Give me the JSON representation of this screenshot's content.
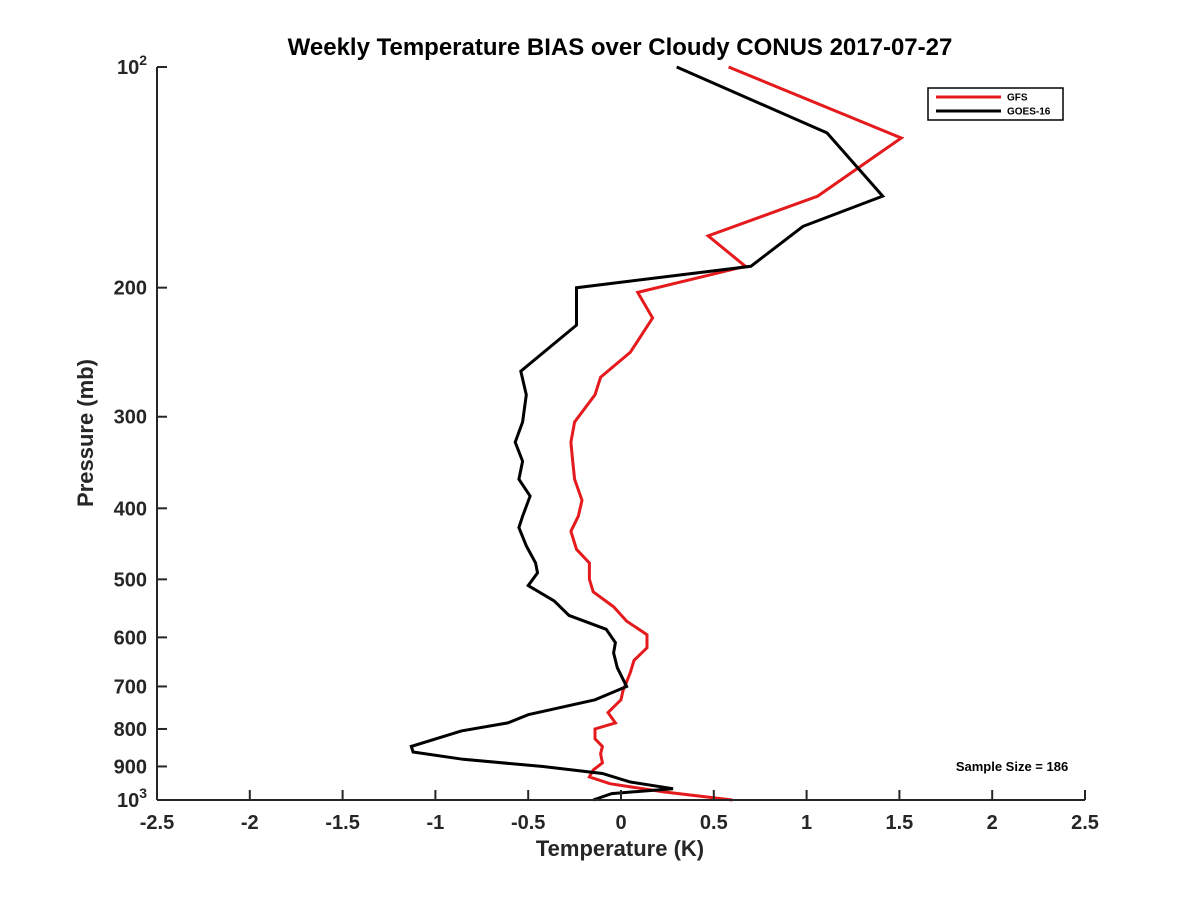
{
  "chart_data": {
    "type": "line",
    "title": "Weekly Temperature BIAS over Cloudy CONUS 2017-07-27",
    "xlabel": "Temperature (K)",
    "ylabel": "Pressure (mb)",
    "xlim": [
      -2.5,
      2.5
    ],
    "ylim": [
      100,
      1000
    ],
    "y_scale": "log",
    "y_reversed": true,
    "grid": false,
    "legend_position": "top-right",
    "xticks": [
      -2.5,
      -2,
      -1.5,
      -1,
      -0.5,
      0,
      0.5,
      1,
      1.5,
      2,
      2.5
    ],
    "xtick_labels": [
      "-2.5",
      "-2",
      "-1.5",
      "-1",
      "-0.5",
      "0",
      "0.5",
      "1",
      "1.5",
      "2",
      "2.5"
    ],
    "yticks": [
      100,
      200,
      300,
      400,
      500,
      600,
      700,
      800,
      900,
      1000
    ],
    "ytick_labels": [
      {
        "base": "10",
        "exp": "2"
      },
      {
        "base": "200",
        "exp": ""
      },
      {
        "base": "300",
        "exp": ""
      },
      {
        "base": "400",
        "exp": ""
      },
      {
        "base": "500",
        "exp": ""
      },
      {
        "base": "600",
        "exp": ""
      },
      {
        "base": "700",
        "exp": ""
      },
      {
        "base": "800",
        "exp": ""
      },
      {
        "base": "900",
        "exp": ""
      },
      {
        "base": "10",
        "exp": "3"
      }
    ],
    "annotation": "Sample Size = 186",
    "series": [
      {
        "name": "GFS",
        "color": "#e41a1c",
        "points": [
          [
            0.58,
            100
          ],
          [
            1.51,
            125
          ],
          [
            1.06,
            150
          ],
          [
            0.47,
            170
          ],
          [
            0.67,
            187
          ],
          [
            0.09,
            203
          ],
          [
            0.17,
            220
          ],
          [
            0.05,
            245
          ],
          [
            -0.11,
            265
          ],
          [
            -0.14,
            280
          ],
          [
            -0.25,
            305
          ],
          [
            -0.27,
            325
          ],
          [
            -0.26,
            345
          ],
          [
            -0.25,
            365
          ],
          [
            -0.21,
            390
          ],
          [
            -0.23,
            410
          ],
          [
            -0.27,
            430
          ],
          [
            -0.24,
            455
          ],
          [
            -0.17,
            475
          ],
          [
            -0.17,
            500
          ],
          [
            -0.15,
            520
          ],
          [
            -0.04,
            545
          ],
          [
            0.03,
            570
          ],
          [
            0.14,
            595
          ],
          [
            0.14,
            620
          ],
          [
            0.07,
            645
          ],
          [
            0.05,
            670
          ],
          [
            0.03,
            690
          ],
          [
            0.01,
            710
          ],
          [
            0.0,
            730
          ],
          [
            -0.07,
            760
          ],
          [
            -0.03,
            785
          ],
          [
            -0.14,
            800
          ],
          [
            -0.14,
            825
          ],
          [
            -0.1,
            845
          ],
          [
            -0.11,
            865
          ],
          [
            -0.1,
            890
          ],
          [
            -0.15,
            910
          ],
          [
            -0.17,
            930
          ],
          [
            -0.06,
            950
          ],
          [
            0.23,
            975
          ],
          [
            0.6,
            1000
          ]
        ]
      },
      {
        "name": "GOES-16",
        "color": "#000000",
        "points": [
          [
            0.3,
            100
          ],
          [
            1.11,
            123
          ],
          [
            1.41,
            150
          ],
          [
            0.98,
            165
          ],
          [
            0.7,
            187
          ],
          [
            -0.24,
            200
          ],
          [
            -0.24,
            225
          ],
          [
            -0.54,
            260
          ],
          [
            -0.51,
            280
          ],
          [
            -0.53,
            305
          ],
          [
            -0.57,
            325
          ],
          [
            -0.53,
            345
          ],
          [
            -0.55,
            365
          ],
          [
            -0.49,
            385
          ],
          [
            -0.53,
            410
          ],
          [
            -0.55,
            425
          ],
          [
            -0.51,
            450
          ],
          [
            -0.46,
            475
          ],
          [
            -0.45,
            490
          ],
          [
            -0.5,
            510
          ],
          [
            -0.36,
            535
          ],
          [
            -0.28,
            560
          ],
          [
            -0.08,
            585
          ],
          [
            -0.03,
            610
          ],
          [
            -0.04,
            630
          ],
          [
            -0.02,
            660
          ],
          [
            0.03,
            700
          ],
          [
            -0.14,
            730
          ],
          [
            -0.5,
            765
          ],
          [
            -0.61,
            785
          ],
          [
            -0.86,
            805
          ],
          [
            -1.13,
            845
          ],
          [
            -1.12,
            860
          ],
          [
            -0.85,
            880
          ],
          [
            -0.42,
            900
          ],
          [
            -0.1,
            920
          ],
          [
            0.05,
            945
          ],
          [
            0.28,
            965
          ],
          [
            -0.05,
            980
          ],
          [
            -0.15,
            1000
          ]
        ]
      }
    ]
  }
}
